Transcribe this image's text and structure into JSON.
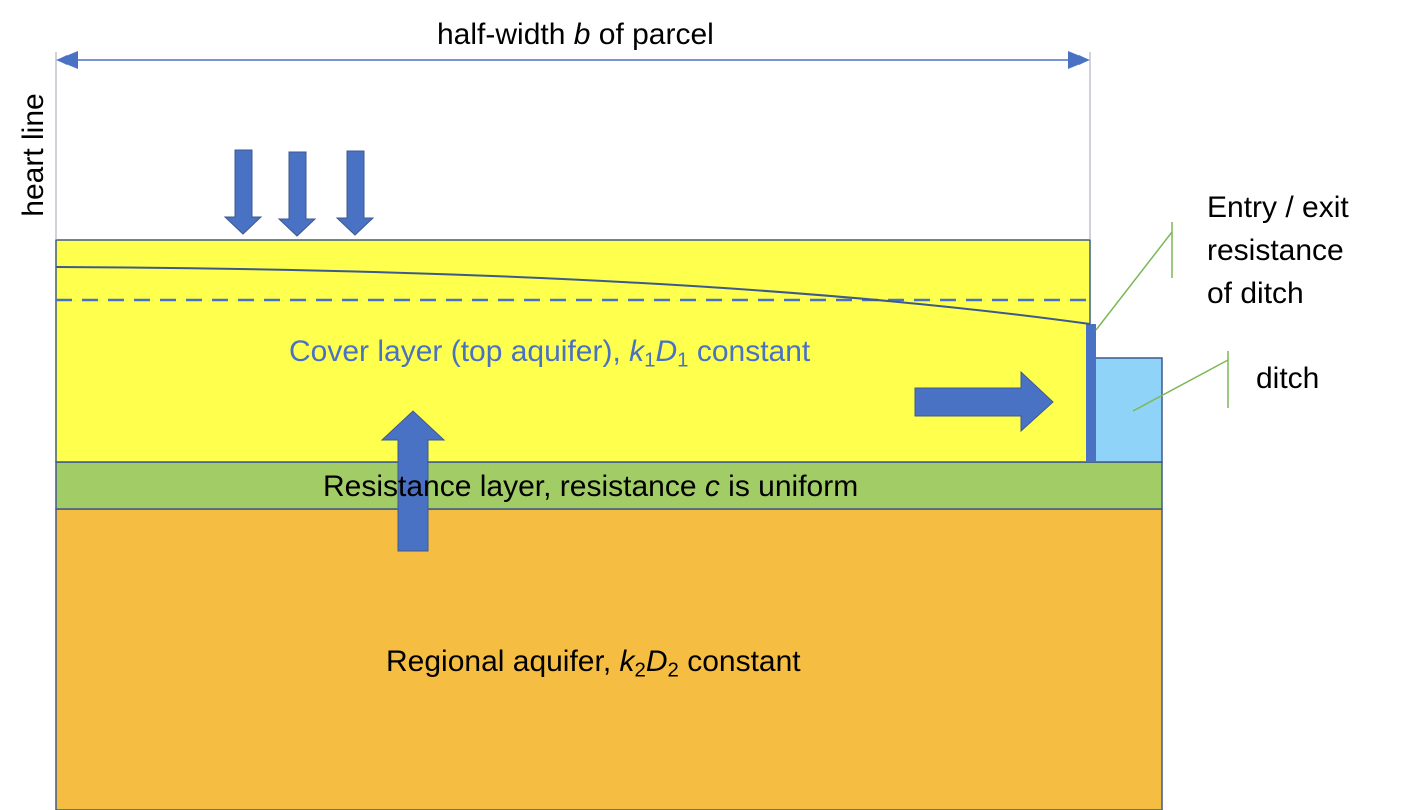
{
  "diagram": {
    "title": {
      "prefix": "half-width ",
      "var": "b",
      "suffix": " of parcel"
    },
    "heart_line_label": "heart line",
    "cover_layer": {
      "prefix": "Cover layer (top aquifer), ",
      "k": "k",
      "k_sub": "1",
      "d": "D",
      "d_sub": "1",
      "suffix": " constant"
    },
    "resistance_layer": {
      "prefix": "Resistance layer, resistance ",
      "var": "c",
      "suffix": " is uniform"
    },
    "regional_aquifer": {
      "prefix": "Regional aquifer, ",
      "k": "k",
      "k_sub": "2",
      "d": "D",
      "d_sub": "2",
      "suffix": " constant"
    },
    "entry_exit_label": [
      "Entry / exit",
      "resistance",
      "of ditch"
    ],
    "ditch_label": "ditch",
    "colors": {
      "cover_layer": "#ffff4d",
      "resistance_layer": "#a2cc66",
      "regional_aquifer": "#f5be42",
      "ditch": "#8fd3f9",
      "arrow": "#4a72c4",
      "outline": "#3e5a8c",
      "callout_line": "#7cb858"
    }
  }
}
